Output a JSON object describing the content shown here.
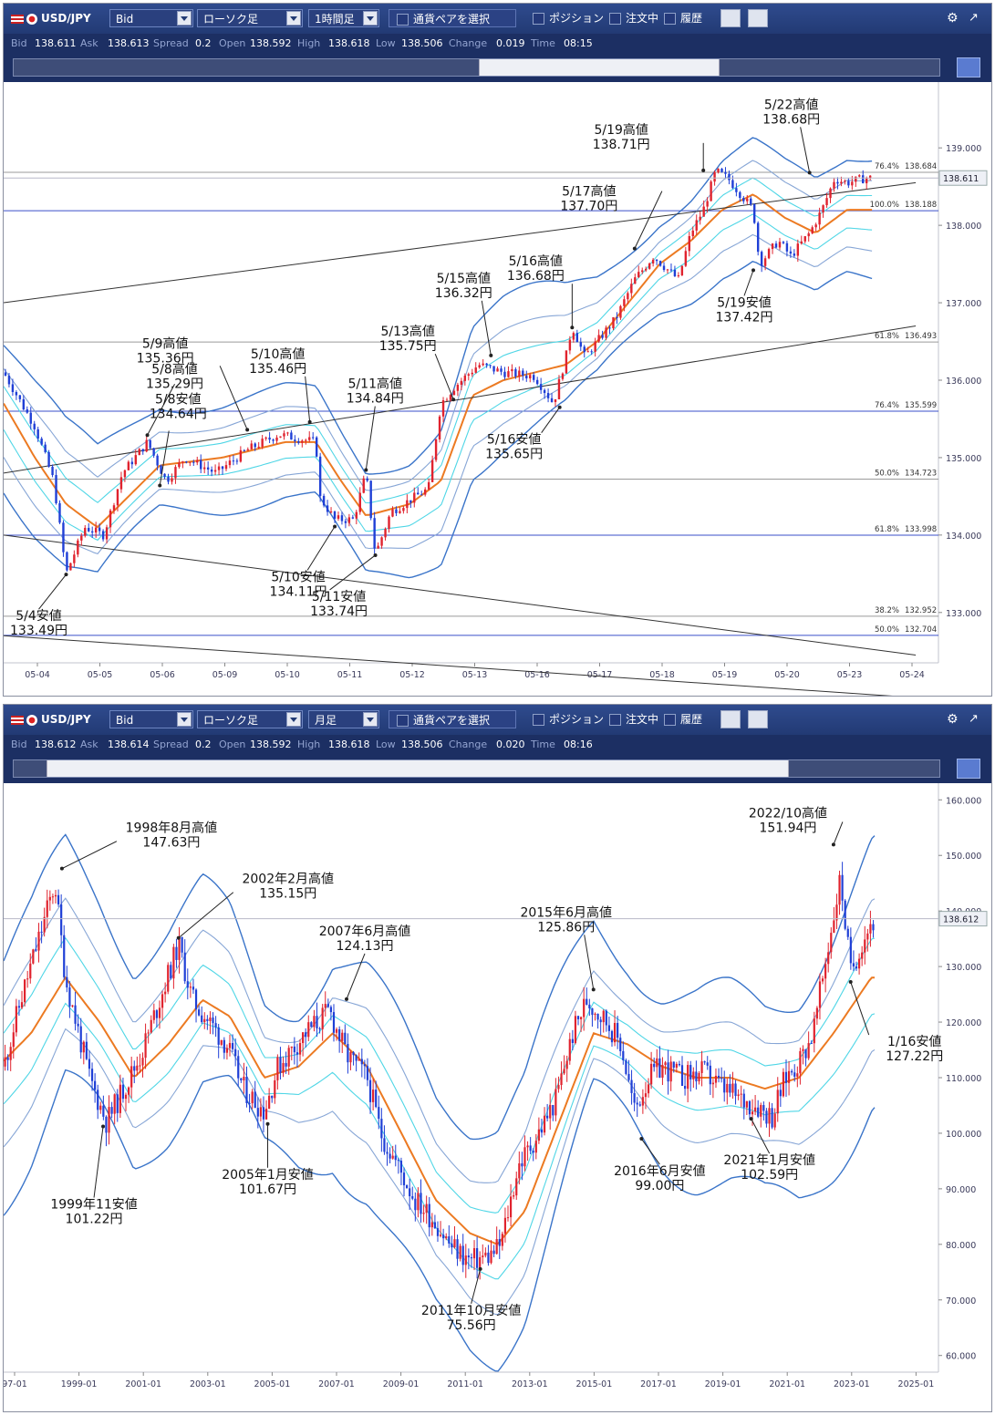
{
  "panels": [
    {
      "toolbar": {
        "pair": "USD/JPY",
        "price_type": "Bid",
        "chart_type": "ローソク足",
        "period": "1時間足",
        "pair_select": "通貨ペアを選択",
        "position": "ポジション",
        "orders": "注文中",
        "history": "履歴"
      },
      "info": {
        "bid_label": "Bid",
        "bid": "138.611",
        "ask_label": "Ask",
        "ask": "138.613",
        "spread_label": "Spread",
        "spread": "0.2",
        "open_label": "Open",
        "open": "138.592",
        "high_label": "High",
        "high": "138.618",
        "low_label": "Low",
        "low": "138.506",
        "change_label": "Change",
        "change": "0.019",
        "time_label": "Time",
        "time": "08:15"
      }
    },
    {
      "toolbar": {
        "pair": "USD/JPY",
        "price_type": "Bid",
        "chart_type": "ローソク足",
        "period": "月足",
        "pair_select": "通貨ペアを選択",
        "position": "ポジション",
        "orders": "注文中",
        "history": "履歴"
      },
      "info": {
        "bid_label": "Bid",
        "bid": "138.612",
        "ask_label": "Ask",
        "ask": "138.614",
        "spread_label": "Spread",
        "spread": "0.2",
        "open_label": "Open",
        "open": "138.592",
        "high_label": "High",
        "high": "138.618",
        "low_label": "Low",
        "low": "138.506",
        "change_label": "Change",
        "change": "0.020",
        "time_label": "Time",
        "time": "08:16"
      }
    }
  ],
  "chart_data": [
    {
      "type": "candlestick",
      "period": "hourly",
      "ylim": [
        132.35,
        139.85
      ],
      "y_ticks": [
        "133.000",
        "134.000",
        "135.000",
        "136.000",
        "137.000",
        "138.000",
        "139.000"
      ],
      "x_ticks": [
        "05-04",
        "05-05",
        "05-06",
        "05-09",
        "05-10",
        "05-11",
        "05-12",
        "05-13",
        "05-16",
        "05-17",
        "05-18",
        "05-19",
        "05-20",
        "05-23",
        "05-24"
      ],
      "current_price": "138.611",
      "series_path": [
        [
          0,
          136.1
        ],
        [
          0.5,
          135.4
        ],
        [
          0.8,
          134.7
        ],
        [
          1.0,
          133.5
        ],
        [
          1.3,
          134.1
        ],
        [
          1.6,
          134.0
        ],
        [
          1.9,
          134.8
        ],
        [
          2.3,
          135.2
        ],
        [
          2.6,
          134.7
        ],
        [
          2.9,
          135.0
        ],
        [
          3.4,
          134.8
        ],
        [
          3.9,
          135.1
        ],
        [
          4.4,
          135.3
        ],
        [
          5.0,
          135.2
        ],
        [
          5.05,
          134.5
        ],
        [
          5.3,
          134.2
        ],
        [
          5.6,
          134.2
        ],
        [
          5.8,
          134.8
        ],
        [
          5.95,
          133.75
        ],
        [
          6.2,
          134.3
        ],
        [
          6.8,
          134.6
        ],
        [
          7.0,
          135.7
        ],
        [
          7.2,
          135.9
        ],
        [
          7.6,
          136.2
        ],
        [
          8.0,
          136.1
        ],
        [
          8.5,
          136.05
        ],
        [
          8.8,
          135.7
        ],
        [
          9.0,
          136.3
        ],
        [
          9.1,
          136.7
        ],
        [
          9.3,
          136.3
        ],
        [
          9.8,
          136.8
        ],
        [
          10.1,
          137.3
        ],
        [
          10.4,
          137.6
        ],
        [
          10.8,
          137.3
        ],
        [
          11.0,
          137.9
        ],
        [
          11.2,
          138.2
        ],
        [
          11.4,
          138.7
        ],
        [
          11.6,
          138.6
        ],
        [
          11.8,
          138.4
        ],
        [
          12.0,
          138.2
        ],
        [
          12.1,
          137.5
        ],
        [
          12.4,
          137.8
        ],
        [
          12.6,
          137.6
        ],
        [
          12.9,
          137.9
        ],
        [
          13.1,
          138.2
        ],
        [
          13.3,
          138.6
        ],
        [
          13.5,
          138.55
        ],
        [
          13.8,
          138.61
        ]
      ],
      "middle_path": [
        [
          0,
          135.7
        ],
        [
          0.5,
          135.0
        ],
        [
          1.0,
          134.4
        ],
        [
          1.5,
          134.1
        ],
        [
          2.0,
          134.5
        ],
        [
          2.5,
          134.9
        ],
        [
          3.5,
          135.0
        ],
        [
          4.5,
          135.2
        ],
        [
          5.0,
          135.2
        ],
        [
          5.4,
          134.7
        ],
        [
          5.8,
          134.25
        ],
        [
          6.5,
          134.4
        ],
        [
          7.0,
          134.7
        ],
        [
          7.5,
          135.8
        ],
        [
          8.0,
          136.0
        ],
        [
          8.5,
          136.1
        ],
        [
          9.0,
          136.2
        ],
        [
          9.5,
          136.5
        ],
        [
          10.0,
          137.0
        ],
        [
          10.5,
          137.5
        ],
        [
          11.0,
          137.8
        ],
        [
          11.5,
          138.2
        ],
        [
          12.0,
          138.4
        ],
        [
          12.5,
          138.1
        ],
        [
          13.0,
          137.9
        ],
        [
          13.5,
          138.2
        ]
      ],
      "bands": {
        "inner": 0.22,
        "middle": 0.45,
        "outer": 0.75
      },
      "trend_lines": [
        [
          [
            0,
            137.0
          ],
          [
            14.6,
            138.55
          ]
        ],
        [
          [
            0,
            134.8
          ],
          [
            14.6,
            136.7
          ]
        ],
        [
          [
            0,
            134.0
          ],
          [
            14.6,
            132.45
          ]
        ],
        [
          [
            0,
            132.7
          ],
          [
            14.6,
            131.9
          ]
        ]
      ],
      "levels": [
        {
          "value": 138.684,
          "ratio": "76.4%",
          "label": "138.684",
          "color": "#9a9a9a"
        },
        {
          "value": 138.188,
          "ratio": "100.0%",
          "label": "138.188",
          "color": "#3a4fc9"
        },
        {
          "value": 136.493,
          "ratio": "61.8%",
          "label": "136.493",
          "color": "#9a9a9a"
        },
        {
          "value": 135.599,
          "ratio": "76.4%",
          "label": "135.599",
          "color": "#3a4fc9"
        },
        {
          "value": 134.723,
          "ratio": "50.0%",
          "label": "134.723",
          "color": "#9a9a9a"
        },
        {
          "value": 133.998,
          "ratio": "61.8%",
          "label": "133.998",
          "color": "#3a4fc9"
        },
        {
          "value": 132.952,
          "ratio": "38.2%",
          "label": "132.952",
          "color": "#9a9a9a"
        },
        {
          "value": 132.704,
          "ratio": "50.0%",
          "label": "132.704",
          "color": "#3a4fc9"
        }
      ],
      "annotations": [
        {
          "date": "5/4安値",
          "price": "133.49円",
          "x": 1.0,
          "y": 133.49
        },
        {
          "date": "5/8高値",
          "price": "135.29円",
          "x": 2.3,
          "y": 135.29
        },
        {
          "date": "5/8安値",
          "price": "134.64円",
          "x": 2.5,
          "y": 134.64
        },
        {
          "date": "5/9高値",
          "price": "135.36円",
          "x": 3.9,
          "y": 135.36
        },
        {
          "date": "5/10高値",
          "price": "135.46円",
          "x": 4.9,
          "y": 135.46
        },
        {
          "date": "5/10安値",
          "price": "134.11円",
          "x": 5.3,
          "y": 134.11
        },
        {
          "date": "5/11高値",
          "price": "134.84円",
          "x": 5.8,
          "y": 134.84
        },
        {
          "date": "5/11安値",
          "price": "133.74円",
          "x": 5.95,
          "y": 133.74
        },
        {
          "date": "5/13高値",
          "price": "135.75円",
          "x": 7.2,
          "y": 135.75
        },
        {
          "date": "5/15高値",
          "price": "136.32円",
          "x": 7.8,
          "y": 136.32
        },
        {
          "date": "5/16安値",
          "price": "135.65円",
          "x": 8.9,
          "y": 135.65
        },
        {
          "date": "5/16高値",
          "price": "136.68円",
          "x": 9.1,
          "y": 136.68
        },
        {
          "date": "5/17高値",
          "price": "137.70円",
          "x": 10.1,
          "y": 137.7
        },
        {
          "date": "5/19高値",
          "price": "138.71円",
          "x": 11.2,
          "y": 138.71
        },
        {
          "date": "5/19安値",
          "price": "137.42円",
          "x": 12.0,
          "y": 137.42
        },
        {
          "date": "5/22高値",
          "price": "138.68円",
          "x": 12.9,
          "y": 138.68
        }
      ]
    },
    {
      "type": "candlestick",
      "period": "monthly",
      "ylim": [
        57,
        163
      ],
      "y_ticks": [
        "60.000",
        "70.000",
        "80.000",
        "90.000",
        "100.000",
        "110.000",
        "120.000",
        "130.000",
        "140.000",
        "150.000",
        "160.000"
      ],
      "x_ticks": [
        "97-01",
        "1999-01",
        "2001-01",
        "2003-01",
        "2005-01",
        "2007-01",
        "2009-01",
        "2011-01",
        "2013-01",
        "2015-01",
        "2017-01",
        "2019-01",
        "2021-01",
        "2023-01",
        "2025-01"
      ],
      "current_price": "138.612",
      "series_path": [
        [
          0,
          112
        ],
        [
          0.5,
          124
        ],
        [
          1.5,
          145
        ],
        [
          1.8,
          128
        ],
        [
          2.5,
          110
        ],
        [
          3.0,
          102
        ],
        [
          3.5,
          108
        ],
        [
          4.0,
          114
        ],
        [
          5.1,
          134
        ],
        [
          5.5,
          124
        ],
        [
          6.0,
          120
        ],
        [
          6.5,
          116
        ],
        [
          7.0,
          108
        ],
        [
          7.6,
          104
        ],
        [
          8.0,
          112
        ],
        [
          8.8,
          118
        ],
        [
          9.5,
          122
        ],
        [
          10.0,
          114
        ],
        [
          10.6,
          110
        ],
        [
          11.0,
          100
        ],
        [
          11.5,
          94
        ],
        [
          12.0,
          88
        ],
        [
          12.6,
          84
        ],
        [
          13.0,
          80
        ],
        [
          13.6,
          77
        ],
        [
          14.2,
          78
        ],
        [
          14.5,
          80
        ],
        [
          15.0,
          94
        ],
        [
          15.6,
          100
        ],
        [
          16.1,
          106
        ],
        [
          16.6,
          118
        ],
        [
          17.0,
          124
        ],
        [
          17.6,
          120
        ],
        [
          18.0,
          116
        ],
        [
          18.4,
          104
        ],
        [
          18.8,
          110
        ],
        [
          19.2,
          112
        ],
        [
          19.8,
          110
        ],
        [
          20.4,
          111
        ],
        [
          21.0,
          108
        ],
        [
          21.5,
          106
        ],
        [
          22.0,
          105
        ],
        [
          22.4,
          103
        ],
        [
          22.8,
          110
        ],
        [
          23.2,
          113
        ],
        [
          23.6,
          118
        ],
        [
          24.0,
          132
        ],
        [
          24.4,
          146
        ],
        [
          24.7,
          129
        ],
        [
          25.0,
          134
        ],
        [
          25.3,
          138
        ]
      ],
      "middle_path": [
        [
          0,
          113
        ],
        [
          0.8,
          118
        ],
        [
          1.8,
          128
        ],
        [
          2.8,
          120
        ],
        [
          3.8,
          110
        ],
        [
          4.8,
          116
        ],
        [
          5.8,
          124
        ],
        [
          6.6,
          121
        ],
        [
          7.6,
          110
        ],
        [
          8.6,
          112
        ],
        [
          9.6,
          118
        ],
        [
          10.6,
          112
        ],
        [
          11.6,
          100
        ],
        [
          12.6,
          88
        ],
        [
          13.6,
          82
        ],
        [
          14.4,
          80
        ],
        [
          15.2,
          86
        ],
        [
          16.2,
          102
        ],
        [
          17.2,
          118
        ],
        [
          18.2,
          116
        ],
        [
          19.2,
          112
        ],
        [
          20.2,
          110
        ],
        [
          21.2,
          110
        ],
        [
          22.2,
          108
        ],
        [
          23.2,
          110
        ],
        [
          24.2,
          118
        ],
        [
          25.3,
          128
        ]
      ],
      "bands": {
        "inner": 5,
        "middle": 10,
        "outer": 18
      },
      "annotations": [
        {
          "date": "1998年8月高値",
          "price": "147.63円",
          "x": 1.7,
          "y": 147.63
        },
        {
          "date": "1999年11安値",
          "price": "101.22円",
          "x": 2.9,
          "y": 101.22
        },
        {
          "date": "2002年2月高値",
          "price": "135.15円",
          "x": 5.1,
          "y": 135.15
        },
        {
          "date": "2005年1月安値",
          "price": "101.67円",
          "x": 7.7,
          "y": 101.67
        },
        {
          "date": "2007年6月高値",
          "price": "124.13円",
          "x": 10.0,
          "y": 124.13
        },
        {
          "date": "2011年10月安値",
          "price": "75.56円",
          "x": 13.9,
          "y": 75.56
        },
        {
          "date": "2015年6月高値",
          "price": "125.86円",
          "x": 17.2,
          "y": 125.86
        },
        {
          "date": "2016年6月安値",
          "price": "99.00円",
          "x": 18.6,
          "y": 99.0
        },
        {
          "date": "2021年1月安値",
          "price": "102.59円",
          "x": 21.8,
          "y": 102.59
        },
        {
          "date": "2022/10高値",
          "price": "151.94円",
          "x": 24.2,
          "y": 151.94
        },
        {
          "date": "1/16安値",
          "price": "127.22円",
          "x": 24.7,
          "y": 127.22
        }
      ]
    }
  ]
}
